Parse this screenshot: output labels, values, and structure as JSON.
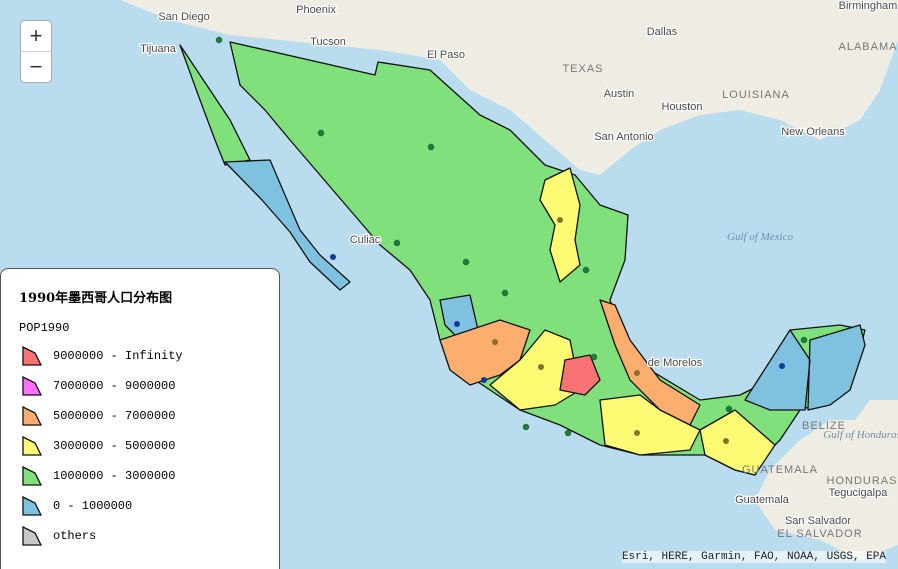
{
  "zoom": {
    "zoom_in": "+",
    "zoom_out": "−"
  },
  "legend": {
    "title": "1990年墨西哥人口分布图",
    "field": "POP1990",
    "classes": [
      {
        "label": "9000000 - Infinity",
        "color": "#f87474"
      },
      {
        "label": "7000000 - 9000000",
        "color": "#ff70ff"
      },
      {
        "label": "5000000 - 7000000",
        "color": "#fbae6e"
      },
      {
        "label": "3000000 - 5000000",
        "color": "#fdfb74"
      },
      {
        "label": "1000000 - 3000000",
        "color": "#80e07c"
      },
      {
        "label": "0 - 1000000",
        "color": "#7fc2e0"
      },
      {
        "label": "others",
        "color": "#c8c8c8"
      }
    ]
  },
  "map_labels": [
    "San Diego",
    "Phoenix",
    "Tijuana",
    "Tucson",
    "El Paso",
    "Dallas",
    "TEXAS",
    "Austin",
    "Houston",
    "LOUISIANA",
    "Birmingham",
    "ALABAMA",
    "New Orleans",
    "San Antonio",
    "Culiac",
    "Gulf of Mexico",
    "de Morelos",
    "BELIZE",
    "Gulf of Honduras",
    "GUATEMALA",
    "HONDURAS",
    "Tegucigalpa",
    "Guatemala",
    "San Salvador",
    "EL SALVADOR"
  ],
  "attribution": "Esri, HERE, Garmin, FAO, NOAA, USGS, EPA"
}
